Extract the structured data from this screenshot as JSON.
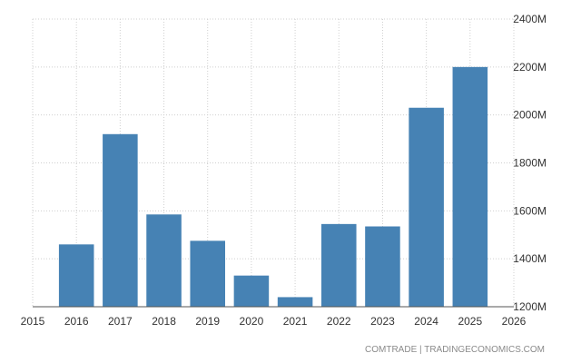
{
  "chart_data": {
    "type": "bar",
    "categories": [
      "2016",
      "2017",
      "2018",
      "2019",
      "2020",
      "2021",
      "2022",
      "2023",
      "2024",
      "2025"
    ],
    "values": [
      1460,
      1920,
      1585,
      1475,
      1330,
      1240,
      1545,
      1535,
      2030,
      2200
    ],
    "x_ticks": [
      "2015",
      "2016",
      "2017",
      "2018",
      "2019",
      "2020",
      "2021",
      "2022",
      "2023",
      "2024",
      "2025",
      "2026"
    ],
    "y_ticks": [
      "1200M",
      "1400M",
      "1600M",
      "1800M",
      "2000M",
      "2200M",
      "2400M"
    ],
    "ylim": [
      1200,
      2400
    ],
    "xlim": [
      2015,
      2026
    ],
    "y_axis_side": "right",
    "grid": true,
    "bar_color": "#4682b4",
    "source": "COMTRADE | TRADINGECONOMICS.COM"
  }
}
